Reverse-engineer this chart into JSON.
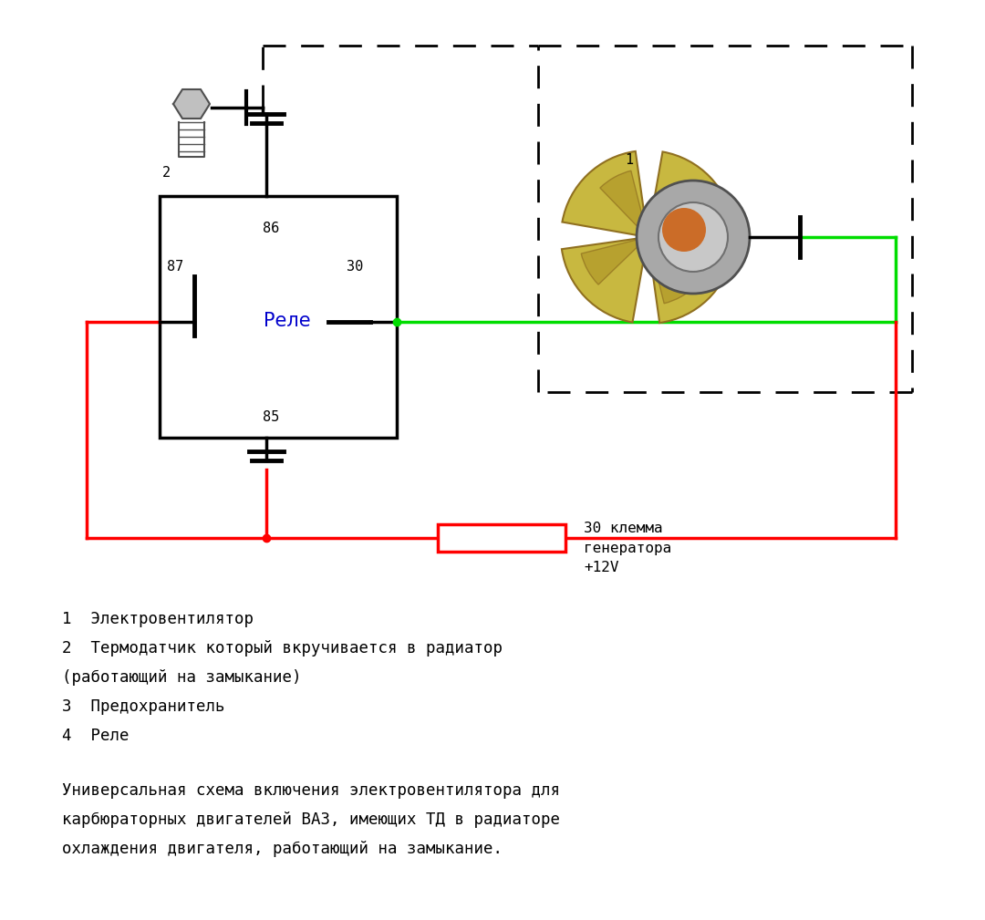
{
  "bg_color": "#ffffff",
  "relay_label": "Реле",
  "relay_label_color": "#0000cc",
  "wire_red": "#ff0000",
  "wire_green": "#00dd00",
  "wire_black": "#000000",
  "blade_color": "#c8b840",
  "blade_dark": "#907020",
  "text_lines": [
    "1  Электровентилятор",
    "2  Термодатчик который вкручивается в радиатор",
    "(работающий на замыкание)",
    "3  Предохранитель",
    "4  Реле"
  ],
  "desc_lines": [
    "Универсальная схема включения электровентилятора для",
    "карбюраторных двигателей ВАЗ, имеющих ТД в радиаторе",
    "охлаждения двигателя, работающий на замыкание."
  ],
  "figw": 10.8,
  "figh": 10.09,
  "dpi": 100
}
